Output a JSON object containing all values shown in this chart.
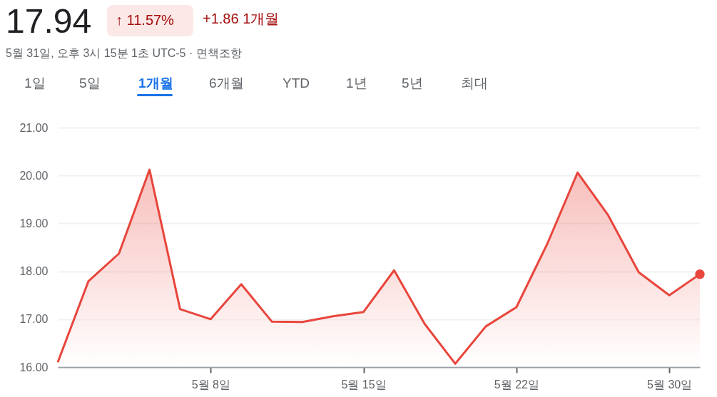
{
  "chart_data": {
    "type": "area",
    "title": "17.94",
    "subtitle": "5월 31일, 오후 3시 15분 1초 UTC-5 · 면책조항",
    "annotations": [
      "↑ 11.57%",
      "+1.86 1개월",
      "1일",
      "5일",
      "1개월",
      "6개월",
      "YTD",
      "1년",
      "5년",
      "최대"
    ],
    "categories": [
      null,
      null,
      null,
      null,
      null,
      "5월 8일",
      null,
      null,
      null,
      null,
      "5월 15일",
      null,
      null,
      null,
      null,
      "5월 22일",
      null,
      null,
      null,
      null,
      "5월 30일",
      null
    ],
    "series": [
      {
        "color": "#e8453c",
        "values": [
          16.1,
          17.79,
          18.37,
          20.12,
          17.21,
          17.0,
          17.73,
          16.95,
          16.94,
          17.06,
          17.15,
          18.02,
          16.9,
          16.07,
          16.85,
          17.25,
          18.56,
          20.06,
          19.17,
          17.98,
          17.5,
          17.94
        ]
      }
    ],
    "ylim": [
      16,
      21
    ],
    "yticks": [
      {
        "value": 16,
        "label": "16.00"
      },
      {
        "value": 17,
        "label": "17.00"
      },
      {
        "value": 18,
        "label": "18.00"
      },
      {
        "value": 19,
        "label": "19.00"
      },
      {
        "value": 20,
        "label": "20.00"
      },
      {
        "value": 21,
        "label": "21.00"
      }
    ],
    "grid": "y",
    "marker": "none",
    "line_style": "solid"
  }
}
